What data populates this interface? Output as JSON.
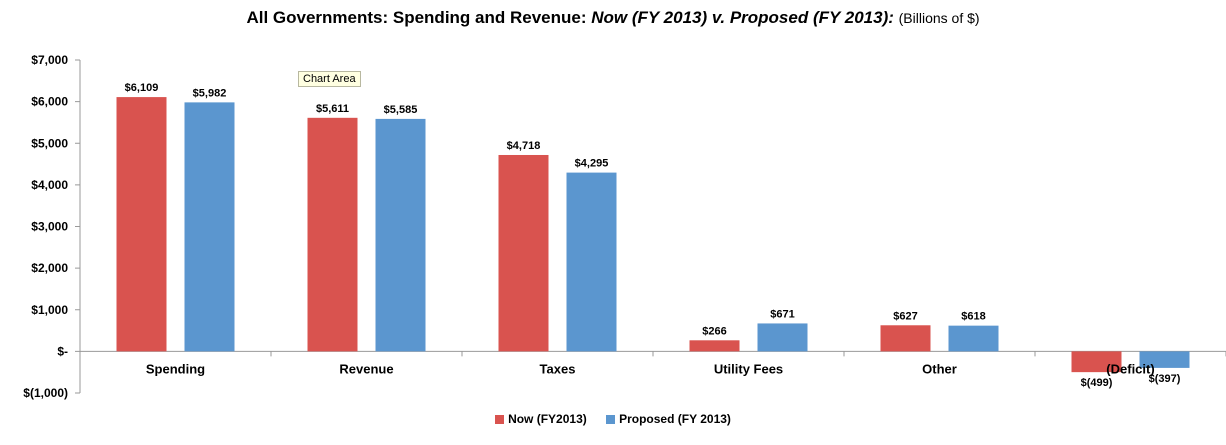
{
  "chart_data": {
    "type": "bar",
    "title": "All Governments: Spending and Revenue:",
    "title_italic": "Now (FY 2013) v. Proposed (FY 2013):",
    "title_units": "(Billions of $)",
    "categories": [
      "Spending",
      "Revenue",
      "Taxes",
      "Utility Fees",
      "Other",
      "(Deficit)"
    ],
    "series": [
      {
        "name": "Now (FY2013)",
        "color": "#d9534f",
        "values": [
          6109,
          5611,
          4718,
          266,
          627,
          -499
        ],
        "labels": [
          "$6,109",
          "$5,611",
          "$4,718",
          "$266",
          "$627",
          "$(499)"
        ]
      },
      {
        "name": "Proposed (FY 2013)",
        "color": "#5b96cf",
        "values": [
          5982,
          5585,
          4295,
          671,
          618,
          -397
        ],
        "labels": [
          "$5,982",
          "$5,585",
          "$4,295",
          "$671",
          "$618",
          "$(397)"
        ]
      }
    ],
    "ylim": [
      -1000,
      7000
    ],
    "yticks": [
      {
        "value": 7000,
        "label": "$7,000"
      },
      {
        "value": 6000,
        "label": "$6,000"
      },
      {
        "value": 5000,
        "label": "$5,000"
      },
      {
        "value": 4000,
        "label": "$4,000"
      },
      {
        "value": 3000,
        "label": "$3,000"
      },
      {
        "value": 2000,
        "label": "$2,000"
      },
      {
        "value": 1000,
        "label": "$1,000"
      },
      {
        "value": 0,
        "label": "$-"
      },
      {
        "value": -1000,
        "label": "$(1,000)"
      }
    ],
    "grid": false,
    "legend_position": "bottom"
  },
  "tooltip": "Chart Area"
}
